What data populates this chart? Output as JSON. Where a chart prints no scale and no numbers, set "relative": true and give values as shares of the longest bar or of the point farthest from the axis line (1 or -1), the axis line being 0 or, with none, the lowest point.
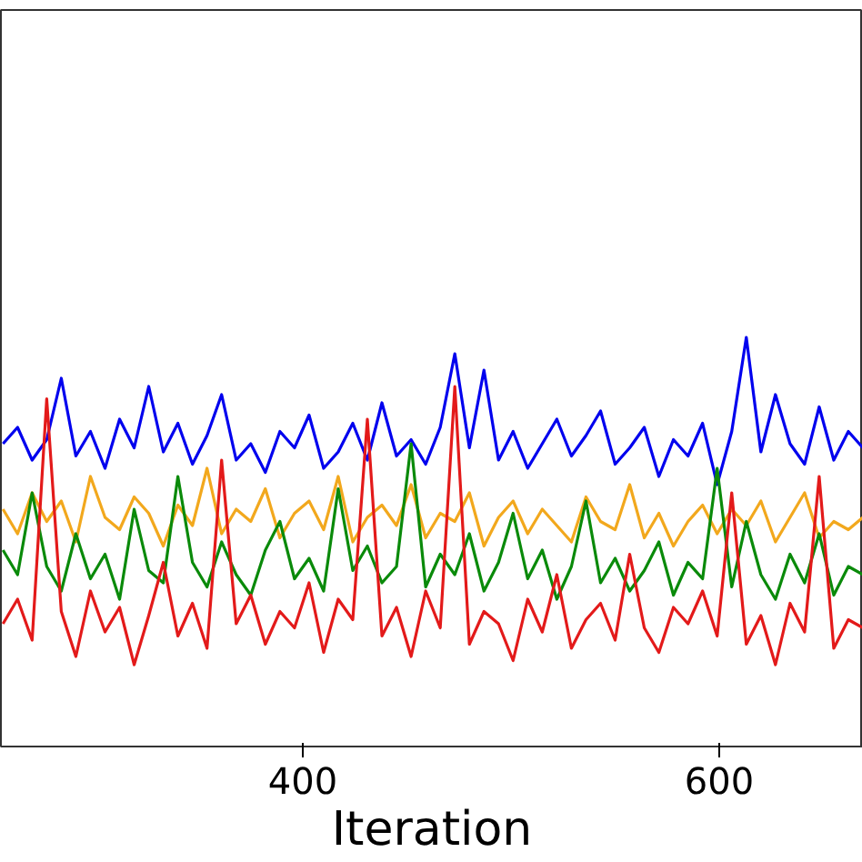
{
  "chart_data": {
    "type": "line",
    "xlabel": "Iteration",
    "relative": true,
    "grid": false,
    "marker": "none",
    "line_style": "solid",
    "xlim": [
      255,
      669
    ],
    "xticks": [
      400,
      600
    ],
    "x": [
      256,
      263,
      270,
      277,
      284,
      291,
      298,
      305,
      312,
      319,
      326,
      333,
      340,
      347,
      354,
      361,
      368,
      375,
      382,
      389,
      396,
      403,
      410,
      417,
      424,
      431,
      438,
      445,
      452,
      459,
      466,
      473,
      480,
      487,
      494,
      501,
      508,
      515,
      522,
      529,
      536,
      543,
      550,
      557,
      564,
      571,
      578,
      585,
      592,
      599,
      606,
      613,
      620,
      627,
      634,
      641,
      648,
      655,
      662,
      669
    ],
    "series": [
      {
        "color": "#0000ee",
        "values": [
          0.74,
          0.78,
          0.7,
          0.75,
          0.9,
          0.71,
          0.77,
          0.68,
          0.8,
          0.73,
          0.88,
          0.72,
          0.79,
          0.69,
          0.76,
          0.86,
          0.7,
          0.74,
          0.67,
          0.77,
          0.73,
          0.81,
          0.68,
          0.72,
          0.79,
          0.7,
          0.84,
          0.71,
          0.75,
          0.69,
          0.78,
          0.96,
          0.73,
          0.92,
          0.7,
          0.77,
          0.68,
          0.74,
          0.8,
          0.71,
          0.76,
          0.82,
          0.69,
          0.73,
          0.78,
          0.66,
          0.75,
          0.71,
          0.79,
          0.64,
          0.77,
          1.0,
          0.72,
          0.86,
          0.74,
          0.69,
          0.83,
          0.7,
          0.77,
          0.73
        ]
      },
      {
        "color": "#f2a81d",
        "values": [
          0.58,
          0.52,
          0.62,
          0.55,
          0.6,
          0.5,
          0.66,
          0.56,
          0.53,
          0.61,
          0.57,
          0.49,
          0.59,
          0.54,
          0.68,
          0.52,
          0.58,
          0.55,
          0.63,
          0.51,
          0.57,
          0.6,
          0.53,
          0.66,
          0.5,
          0.56,
          0.59,
          0.54,
          0.64,
          0.51,
          0.57,
          0.55,
          0.62,
          0.49,
          0.56,
          0.6,
          0.52,
          0.58,
          0.54,
          0.5,
          0.61,
          0.55,
          0.53,
          0.64,
          0.51,
          0.57,
          0.49,
          0.55,
          0.59,
          0.52,
          0.58,
          0.54,
          0.6,
          0.5,
          0.56,
          0.62,
          0.51,
          0.55,
          0.53,
          0.56
        ]
      },
      {
        "color": "#0a8a0a",
        "values": [
          0.48,
          0.42,
          0.62,
          0.44,
          0.38,
          0.52,
          0.41,
          0.47,
          0.36,
          0.58,
          0.43,
          0.4,
          0.66,
          0.45,
          0.39,
          0.5,
          0.42,
          0.37,
          0.48,
          0.55,
          0.41,
          0.46,
          0.38,
          0.63,
          0.43,
          0.49,
          0.4,
          0.44,
          0.74,
          0.39,
          0.47,
          0.42,
          0.52,
          0.38,
          0.45,
          0.57,
          0.41,
          0.48,
          0.36,
          0.44,
          0.6,
          0.4,
          0.46,
          0.38,
          0.43,
          0.5,
          0.37,
          0.45,
          0.41,
          0.68,
          0.39,
          0.55,
          0.42,
          0.36,
          0.47,
          0.4,
          0.52,
          0.37,
          0.44,
          0.42
        ]
      },
      {
        "color": "#e31a1a",
        "values": [
          0.3,
          0.36,
          0.26,
          0.85,
          0.33,
          0.22,
          0.38,
          0.28,
          0.34,
          0.2,
          0.32,
          0.45,
          0.27,
          0.35,
          0.24,
          0.7,
          0.3,
          0.37,
          0.25,
          0.33,
          0.29,
          0.4,
          0.23,
          0.36,
          0.31,
          0.8,
          0.27,
          0.34,
          0.22,
          0.38,
          0.29,
          0.88,
          0.25,
          0.33,
          0.3,
          0.21,
          0.36,
          0.28,
          0.42,
          0.24,
          0.31,
          0.35,
          0.26,
          0.47,
          0.29,
          0.23,
          0.34,
          0.3,
          0.38,
          0.27,
          0.62,
          0.25,
          0.32,
          0.2,
          0.35,
          0.28,
          0.66,
          0.24,
          0.31,
          0.29
        ]
      }
    ]
  }
}
